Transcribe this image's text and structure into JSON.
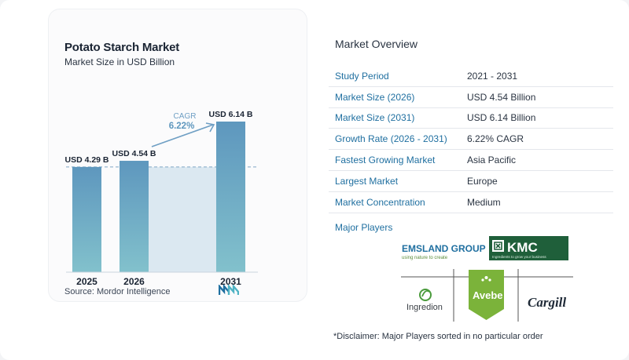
{
  "chart_data": {
    "type": "bar",
    "title": "Potato Starch Market",
    "subtitle": "Market Size in USD Billion",
    "categories": [
      "2025",
      "2026",
      "2031"
    ],
    "values": [
      4.29,
      4.54,
      6.14
    ],
    "value_labels": [
      "USD 4.29 B",
      "USD 4.54 B",
      "USD 6.14 B"
    ],
    "cagr_label": "CAGR",
    "cagr_value": "6.22%",
    "xlabel": "",
    "ylabel": "",
    "grid": false,
    "bar_color": "#5e97be",
    "bar_color_light": "#7ab9c9"
  },
  "source": "Source:  Mordor Intelligence",
  "overview": {
    "title": "Market Overview",
    "rows": [
      {
        "label": "Study Period",
        "value": "2021 - 2031"
      },
      {
        "label": "Market Size (2026)",
        "value": "USD 4.54 Billion"
      },
      {
        "label": "Market Size (2031)",
        "value": "USD 6.14 Billion"
      },
      {
        "label": "Growth Rate (2026 - 2031)",
        "value": "6.22% CAGR"
      },
      {
        "label": "Fastest Growing Market",
        "value": "Asia Pacific"
      },
      {
        "label": "Largest Market",
        "value": "Europe"
      },
      {
        "label": "Market Concentration",
        "value": "Medium"
      }
    ]
  },
  "players": {
    "title": "Major Players",
    "emsland": "EMSLAND GROUP",
    "emsland_tag": "using nature to create",
    "kmc": "KMC",
    "kmc_tag": "Ingredients to grow your business",
    "avebe": "Avebe",
    "ingredion": "Ingredion",
    "cargill": "Cargill"
  },
  "disclaimer": "*Disclaimer: Major Players sorted in no particular order",
  "colors": {
    "accent": "#1f6fa0",
    "bar": "#5e97be",
    "bar_light": "#7ab9c9"
  }
}
